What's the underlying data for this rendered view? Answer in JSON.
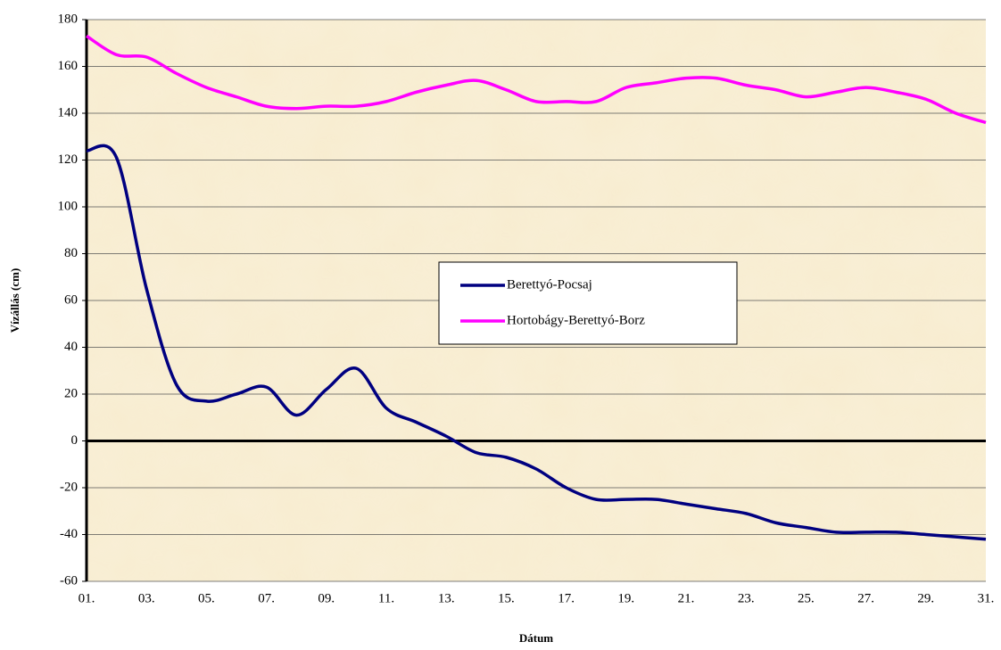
{
  "chart_data": {
    "type": "line",
    "xlabel": "Dátum",
    "ylabel": "Vízállás (cm)",
    "categories": [
      "01.",
      null,
      "03.",
      null,
      "05.",
      null,
      "07.",
      null,
      "09.",
      null,
      "11.",
      null,
      "13.",
      null,
      "15.",
      null,
      "17.",
      null,
      "19.",
      null,
      "21.",
      null,
      "23.",
      null,
      "25.",
      null,
      "27.",
      null,
      "29.",
      null,
      "31."
    ],
    "series": [
      {
        "name": "Berettyó-Pocsaj",
        "color": "#000080",
        "values": [
          124,
          121,
          65,
          24,
          17,
          20,
          23,
          11,
          22,
          31,
          14,
          8,
          2,
          -5,
          -7,
          -12,
          -20,
          -25,
          -25,
          -25,
          -27,
          -29,
          -31,
          -35,
          -37,
          -39,
          -39,
          -39,
          -40,
          -41,
          -42
        ]
      },
      {
        "name": "Hortobágy-Berettyó-Borz",
        "color": "#ff00ff",
        "values": [
          173,
          165,
          164,
          157,
          151,
          147,
          143,
          142,
          143,
          143,
          145,
          149,
          152,
          154,
          150,
          145,
          145,
          145,
          151,
          153,
          155,
          155,
          152,
          150,
          147,
          149,
          151,
          149,
          146,
          140,
          136
        ]
      }
    ],
    "ylim": [
      -60,
      180
    ],
    "yticks": [
      -60,
      -40,
      -20,
      0,
      20,
      40,
      60,
      80,
      100,
      120,
      140,
      160,
      180
    ],
    "grid": true
  }
}
